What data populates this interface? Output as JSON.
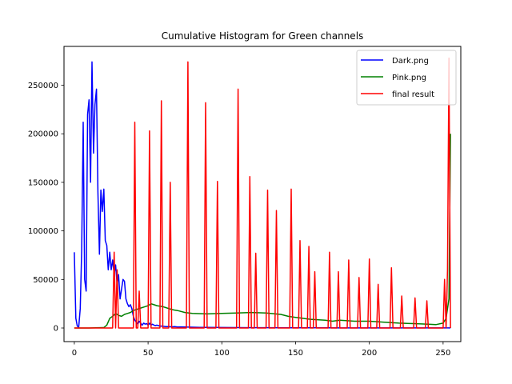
{
  "chart_data": {
    "type": "line",
    "title": "Cumulative Histogram for Green channels",
    "xlabel": "",
    "ylabel": "",
    "xlim": [
      -7,
      262
    ],
    "ylim": [
      -14000,
      290000
    ],
    "xticks": [
      0,
      50,
      100,
      150,
      200,
      250
    ],
    "yticks": [
      0,
      50000,
      100000,
      150000,
      200000,
      250000
    ],
    "grid": false,
    "legend_position": "top-right",
    "series": [
      {
        "name": "Dark.png",
        "color": "#0000ff",
        "x": [
          0,
          1,
          2,
          3,
          4,
          5,
          6,
          7,
          8,
          9,
          10,
          11,
          12,
          13,
          14,
          15,
          16,
          17,
          18,
          19,
          20,
          21,
          22,
          23,
          24,
          25,
          26,
          27,
          28,
          29,
          30,
          31,
          32,
          33,
          34,
          35,
          36,
          37,
          38,
          39,
          40,
          41,
          42,
          43,
          44,
          45,
          46,
          47,
          48,
          49,
          50,
          51,
          52,
          53,
          54,
          55,
          56,
          57,
          58,
          59,
          60,
          62,
          64,
          66,
          68,
          70,
          72,
          75,
          80,
          85,
          90,
          100,
          110,
          120,
          130,
          140,
          150,
          160,
          170,
          180,
          190,
          200,
          210,
          220,
          230,
          240,
          250,
          255
        ],
        "y": [
          78000,
          10000,
          2000,
          1000,
          20000,
          80000,
          212000,
          50000,
          38000,
          220000,
          235000,
          150000,
          274000,
          180000,
          230000,
          246000,
          140000,
          76000,
          142000,
          120000,
          143000,
          90000,
          85000,
          60000,
          78000,
          60000,
          70000,
          55000,
          65000,
          45000,
          55000,
          30000,
          40000,
          50000,
          48000,
          30000,
          25000,
          22000,
          24000,
          20000,
          12000,
          8000,
          6000,
          4000,
          7000,
          5000,
          3000,
          5000,
          4000,
          4500,
          3000,
          5000,
          3000,
          4000,
          3000,
          2500,
          3000,
          2500,
          2000,
          2000,
          1800,
          1500,
          1500,
          1200,
          1500,
          1000,
          1200,
          1000,
          800,
          700,
          600,
          500,
          400,
          300,
          300,
          200,
          200,
          200,
          150,
          100,
          100,
          100,
          100,
          100,
          100,
          100,
          100,
          100
        ]
      },
      {
        "name": "Pink.png",
        "color": "#008000",
        "x": [
          0,
          10,
          20,
          22,
          24,
          26,
          28,
          30,
          32,
          34,
          36,
          38,
          40,
          42,
          44,
          46,
          48,
          50,
          52,
          54,
          56,
          58,
          60,
          62,
          64,
          66,
          68,
          70,
          75,
          80,
          90,
          100,
          110,
          120,
          130,
          140,
          145,
          150,
          155,
          160,
          170,
          175,
          180,
          190,
          195,
          200,
          210,
          220,
          230,
          240,
          245,
          250,
          252,
          254,
          255
        ],
        "y": [
          0,
          0,
          500,
          3000,
          10000,
          12000,
          15000,
          13000,
          12000,
          14000,
          15000,
          16000,
          18000,
          19000,
          20000,
          21000,
          22000,
          23000,
          25000,
          24000,
          23000,
          22500,
          22000,
          21000,
          20000,
          19000,
          18500,
          18000,
          16000,
          15000,
          14500,
          15000,
          15500,
          16000,
          15500,
          14000,
          12000,
          11000,
          10000,
          9000,
          8000,
          7000,
          8000,
          7000,
          7000,
          7000,
          6000,
          5000,
          4500,
          4000,
          3500,
          5000,
          10000,
          30000,
          200000
        ]
      },
      {
        "name": "final result",
        "color": "#ff0000",
        "x": [
          0,
          26,
          27,
          28,
          29,
          30,
          31,
          32,
          39,
          40,
          41,
          42,
          43,
          44,
          45,
          46,
          49,
          50,
          51,
          52,
          57,
          58,
          59,
          60,
          63,
          64,
          65,
          66,
          75,
          76,
          77,
          78,
          87,
          88,
          89,
          90,
          95,
          96,
          97,
          98,
          109,
          110,
          111,
          112,
          117,
          118,
          119,
          120,
          121,
          122,
          123,
          124,
          125,
          128,
          129,
          130,
          131,
          132,
          135,
          136,
          137,
          138,
          139,
          144,
          145,
          146,
          147,
          148,
          151,
          152,
          153,
          154,
          157,
          158,
          159,
          160,
          161,
          162,
          163,
          164,
          165,
          166,
          171,
          172,
          173,
          174,
          177,
          178,
          179,
          180,
          181,
          184,
          185,
          186,
          187,
          191,
          192,
          193,
          194,
          198,
          199,
          200,
          201,
          204,
          205,
          206,
          207,
          213,
          214,
          215,
          216,
          220,
          221,
          222,
          223,
          229,
          230,
          231,
          232,
          237,
          238,
          239,
          240,
          250,
          251,
          252,
          253,
          254,
          255
        ],
        "y": [
          0,
          0,
          78000,
          0,
          60000,
          0,
          0,
          0,
          0,
          0,
          212000,
          0,
          0,
          38000,
          0,
          0,
          0,
          0,
          203000,
          0,
          0,
          0,
          234000,
          0,
          0,
          0,
          150000,
          0,
          0,
          0,
          274000,
          0,
          0,
          0,
          232000,
          0,
          0,
          0,
          151000,
          0,
          0,
          0,
          246000,
          0,
          0,
          0,
          156000,
          0,
          0,
          0,
          77000,
          0,
          0,
          0,
          0,
          0,
          142000,
          0,
          0,
          0,
          121000,
          0,
          0,
          0,
          0,
          0,
          143000,
          0,
          0,
          0,
          90000,
          0,
          0,
          0,
          84000,
          0,
          0,
          0,
          58000,
          0,
          0,
          0,
          0,
          0,
          78000,
          0,
          0,
          0,
          58000,
          0,
          0,
          0,
          0,
          70000,
          0,
          0,
          0,
          52000,
          0,
          0,
          0,
          71000,
          0,
          0,
          0,
          45000,
          0,
          0,
          0,
          62000,
          0,
          0,
          0,
          33000,
          0,
          0,
          0,
          31000,
          0,
          0,
          0,
          28000,
          0,
          0,
          50000,
          0,
          60000,
          278000,
          0
        ]
      }
    ]
  }
}
